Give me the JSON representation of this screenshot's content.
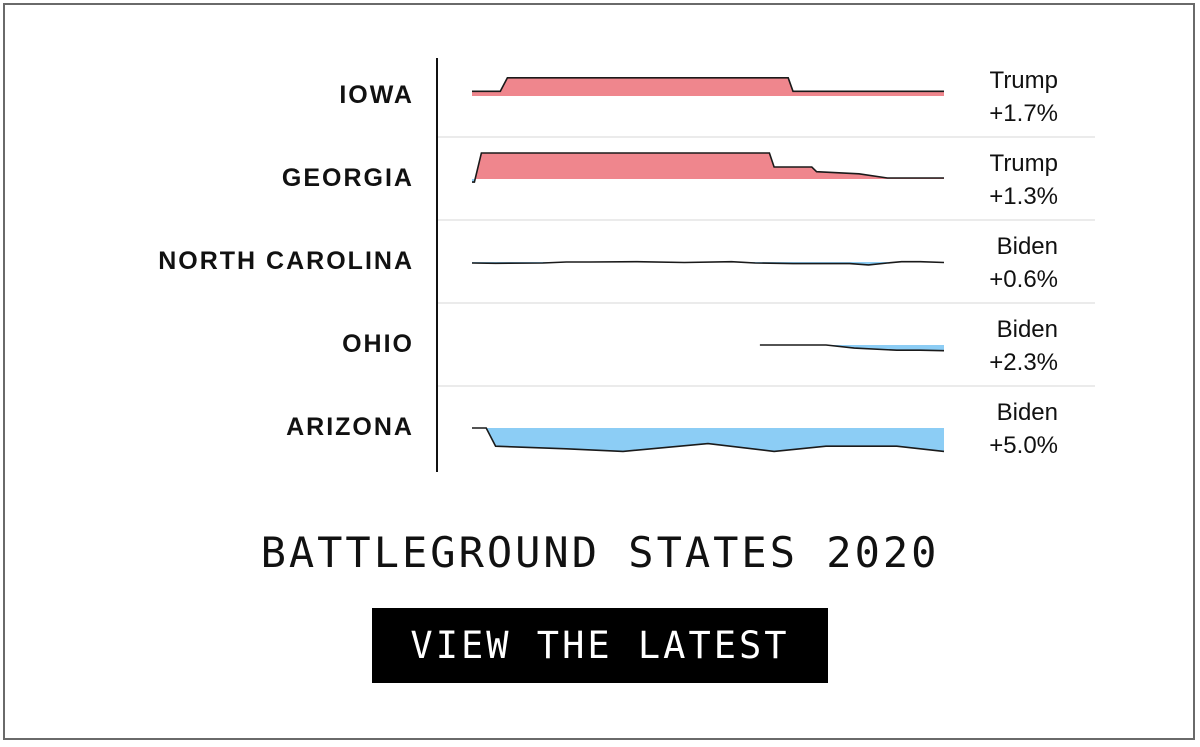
{
  "header": {
    "title": "BATTLEGROUND STATES 2020"
  },
  "cta": {
    "label": "VIEW THE LATEST"
  },
  "colors": {
    "trump": "#ef868d",
    "biden": "#8ccdf5",
    "line": "#1a1a1a"
  },
  "chart_data": {
    "type": "area",
    "title": "BATTLEGROUND STATES 2020",
    "rows": [
      {
        "state": "IOWA",
        "leader": "Trump",
        "margin": "+1.7%",
        "series": [
          [
            0.0,
            0.9
          ],
          [
            0.06,
            0.9
          ],
          [
            0.075,
            3.5
          ],
          [
            0.67,
            3.5
          ],
          [
            0.68,
            0.9
          ],
          [
            1.0,
            0.9
          ]
        ]
      },
      {
        "state": "GEORGIA",
        "leader": "Trump",
        "margin": "+1.3%",
        "series": [
          [
            0.0,
            -0.6
          ],
          [
            0.005,
            -0.6
          ],
          [
            0.02,
            5.0
          ],
          [
            0.63,
            5.0
          ],
          [
            0.64,
            2.3
          ],
          [
            0.72,
            2.3
          ],
          [
            0.73,
            1.4
          ],
          [
            0.82,
            1.0
          ],
          [
            0.88,
            0.2
          ],
          [
            1.0,
            0.2
          ]
        ]
      },
      {
        "state": "NORTH CAROLINA",
        "leader": "Biden",
        "margin": "+0.6%",
        "series": [
          [
            0.0,
            -0.2
          ],
          [
            0.05,
            -0.25
          ],
          [
            0.15,
            -0.2
          ],
          [
            0.2,
            0.0
          ],
          [
            0.25,
            0.0
          ],
          [
            0.35,
            0.05
          ],
          [
            0.45,
            -0.1
          ],
          [
            0.55,
            0.05
          ],
          [
            0.6,
            -0.2
          ],
          [
            0.68,
            -0.3
          ],
          [
            0.8,
            -0.3
          ],
          [
            0.84,
            -0.55
          ],
          [
            0.88,
            -0.2
          ],
          [
            0.91,
            0.05
          ],
          [
            0.95,
            0.05
          ],
          [
            1.0,
            -0.1
          ]
        ]
      },
      {
        "state": "OHIO",
        "leader": "Biden",
        "margin": "+2.3%",
        "series": [
          [
            0.61,
            0.0
          ],
          [
            0.75,
            0.0
          ],
          [
            0.81,
            -0.6
          ],
          [
            0.9,
            -1.0
          ],
          [
            0.95,
            -1.0
          ],
          [
            1.0,
            -1.1
          ]
        ]
      },
      {
        "state": "ARIZONA",
        "leader": "Biden",
        "margin": "+5.0%",
        "series": [
          [
            0.0,
            0.0
          ],
          [
            0.03,
            0.0
          ],
          [
            0.05,
            -3.5
          ],
          [
            0.2,
            -4.0
          ],
          [
            0.32,
            -4.5
          ],
          [
            0.5,
            -3.0
          ],
          [
            0.64,
            -4.5
          ],
          [
            0.75,
            -3.5
          ],
          [
            0.9,
            -3.5
          ],
          [
            1.0,
            -4.5
          ]
        ]
      }
    ]
  }
}
